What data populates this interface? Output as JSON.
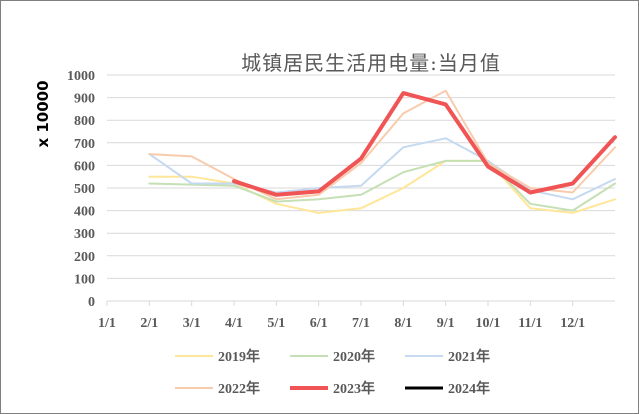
{
  "chart_data": {
    "type": "line",
    "title": "城镇居民生活用电量:当月值",
    "ylabel": "x 10000",
    "xlabel": "",
    "categories": [
      "1/1",
      "2/1",
      "3/1",
      "4/1",
      "5/1",
      "6/1",
      "7/1",
      "8/1",
      "9/1",
      "10/1",
      "11/1",
      "12/1"
    ],
    "yticks": [
      "0",
      "100",
      "200",
      "300",
      "400",
      "500",
      "600",
      "700",
      "800",
      "900",
      "1000"
    ],
    "ylim": [
      0,
      1000
    ],
    "grid": true,
    "legend_position": "bottom",
    "series": [
      {
        "name": "2019年",
        "color": "#ffe699",
        "width": 2,
        "x": [
          1,
          2,
          3,
          4,
          5,
          6,
          7,
          8,
          9,
          10,
          11,
          12
        ],
        "values": [
          550,
          550,
          520,
          430,
          390,
          410,
          500,
          620,
          620,
          410,
          390,
          450
        ]
      },
      {
        "name": "2020年",
        "color": "#c5e0b4",
        "width": 2,
        "x": [
          1,
          2,
          3,
          4,
          5,
          6,
          7,
          8,
          9,
          10,
          11,
          12
        ],
        "values": [
          520,
          515,
          510,
          440,
          450,
          470,
          570,
          620,
          620,
          430,
          400,
          520
        ]
      },
      {
        "name": "2021年",
        "color": "#c5d9f1",
        "width": 2,
        "x": [
          1,
          2,
          3,
          4,
          5,
          6,
          7,
          8,
          9,
          10,
          11,
          12
        ],
        "values": [
          650,
          520,
          520,
          480,
          500,
          510,
          680,
          720,
          620,
          490,
          450,
          540
        ]
      },
      {
        "name": "2022年",
        "color": "#f8cbad",
        "width": 2,
        "x": [
          1,
          2,
          3,
          4,
          5,
          6,
          7,
          8,
          9,
          10,
          11,
          12
        ],
        "values": [
          650,
          640,
          540,
          450,
          470,
          610,
          830,
          930,
          610,
          500,
          480,
          680
        ]
      },
      {
        "name": "2023年",
        "color": "#f05454",
        "width": 4,
        "x": [
          3,
          4,
          5,
          6,
          7,
          8,
          9,
          10,
          11,
          12
        ],
        "values": [
          530,
          470,
          485,
          630,
          920,
          870,
          595,
          480,
          520,
          725
        ]
      },
      {
        "name": "2024年",
        "color": "#000000",
        "width": 3,
        "x": [],
        "values": []
      }
    ]
  }
}
